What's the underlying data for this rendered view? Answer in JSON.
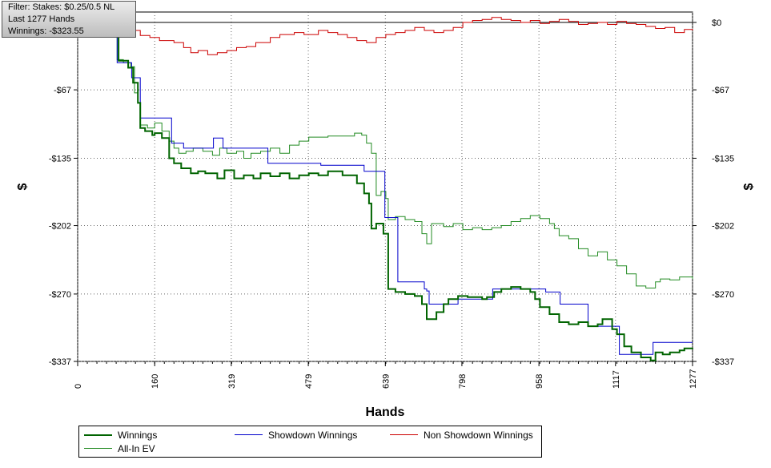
{
  "info": {
    "filter": "Filter: Stakes: $0.25/0.5 NL",
    "hands": "Last 1277 Hands",
    "winnings": "Winnings: -$323.55"
  },
  "chart_data": {
    "type": "line",
    "xlabel": "Hands",
    "ylabel": "$",
    "xlim": [
      0,
      1277
    ],
    "ylim": [
      -337,
      5
    ],
    "x_ticks": [
      0,
      160,
      319,
      479,
      639,
      798,
      958,
      1117,
      1277
    ],
    "y_ticks": [
      {
        "value": 0,
        "label": "$0"
      },
      {
        "value": -67,
        "label": "-$67"
      },
      {
        "value": -135,
        "label": "-$135"
      },
      {
        "value": -202,
        "label": "-$202"
      },
      {
        "value": -270,
        "label": "-$270"
      },
      {
        "value": -337,
        "label": "-$337"
      }
    ],
    "grid": true,
    "legend_position": "bottom",
    "series": [
      {
        "name": "Winnings",
        "color": "#006400",
        "points": [
          [
            0,
            0
          ],
          [
            78,
            0
          ],
          [
            85,
            -38
          ],
          [
            105,
            -45
          ],
          [
            115,
            -60
          ],
          [
            125,
            -80
          ],
          [
            130,
            -105
          ],
          [
            140,
            -108
          ],
          [
            155,
            -112
          ],
          [
            160,
            -110
          ],
          [
            175,
            -115
          ],
          [
            190,
            -135
          ],
          [
            200,
            -140
          ],
          [
            215,
            -145
          ],
          [
            235,
            -150
          ],
          [
            250,
            -148
          ],
          [
            265,
            -150
          ],
          [
            290,
            -155
          ],
          [
            305,
            -147
          ],
          [
            325,
            -155
          ],
          [
            345,
            -152
          ],
          [
            365,
            -155
          ],
          [
            380,
            -150
          ],
          [
            400,
            -153
          ],
          [
            420,
            -150
          ],
          [
            440,
            -155
          ],
          [
            460,
            -152
          ],
          [
            480,
            -150
          ],
          [
            500,
            -152
          ],
          [
            520,
            -148
          ],
          [
            550,
            -152
          ],
          [
            580,
            -160
          ],
          [
            595,
            -170
          ],
          [
            605,
            -180
          ],
          [
            610,
            -205
          ],
          [
            620,
            -200
          ],
          [
            635,
            -210
          ],
          [
            645,
            -265
          ],
          [
            660,
            -268
          ],
          [
            680,
            -270
          ],
          [
            700,
            -272
          ],
          [
            715,
            -280
          ],
          [
            725,
            -295
          ],
          [
            745,
            -288
          ],
          [
            760,
            -280
          ],
          [
            770,
            -275
          ],
          [
            790,
            -272
          ],
          [
            810,
            -273
          ],
          [
            840,
            -275
          ],
          [
            850,
            -273
          ],
          [
            865,
            -268
          ],
          [
            880,
            -265
          ],
          [
            900,
            -263
          ],
          [
            920,
            -265
          ],
          [
            940,
            -268
          ],
          [
            950,
            -275
          ],
          [
            960,
            -283
          ],
          [
            980,
            -290
          ],
          [
            1000,
            -298
          ],
          [
            1020,
            -300
          ],
          [
            1040,
            -298
          ],
          [
            1060,
            -302
          ],
          [
            1080,
            -300
          ],
          [
            1090,
            -295
          ],
          [
            1110,
            -305
          ],
          [
            1120,
            -310
          ],
          [
            1135,
            -322
          ],
          [
            1150,
            -328
          ],
          [
            1170,
            -333
          ],
          [
            1190,
            -336
          ],
          [
            1200,
            -328
          ],
          [
            1215,
            -330
          ],
          [
            1230,
            -328
          ],
          [
            1250,
            -326
          ],
          [
            1260,
            -324
          ],
          [
            1277,
            -323.55
          ]
        ]
      },
      {
        "name": "Showdown Winnings",
        "color": "#0000cc",
        "points": [
          [
            0,
            0
          ],
          [
            78,
            0
          ],
          [
            82,
            -40
          ],
          [
            110,
            -40
          ],
          [
            112,
            -55
          ],
          [
            128,
            -55
          ],
          [
            130,
            -95
          ],
          [
            190,
            -95
          ],
          [
            195,
            -120
          ],
          [
            215,
            -120
          ],
          [
            220,
            -125
          ],
          [
            280,
            -125
          ],
          [
            282,
            -115
          ],
          [
            300,
            -115
          ],
          [
            302,
            -125
          ],
          [
            390,
            -125
          ],
          [
            395,
            -140
          ],
          [
            500,
            -140
          ],
          [
            505,
            -142
          ],
          [
            590,
            -142
          ],
          [
            595,
            -148
          ],
          [
            635,
            -148
          ],
          [
            638,
            -194
          ],
          [
            660,
            -194
          ],
          [
            665,
            -258
          ],
          [
            715,
            -258
          ],
          [
            720,
            -265
          ],
          [
            725,
            -267
          ],
          [
            730,
            -280
          ],
          [
            780,
            -280
          ],
          [
            790,
            -275
          ],
          [
            860,
            -275
          ],
          [
            862,
            -265
          ],
          [
            970,
            -265
          ],
          [
            972,
            -268
          ],
          [
            1000,
            -268
          ],
          [
            1002,
            -280
          ],
          [
            1055,
            -280
          ],
          [
            1060,
            -302
          ],
          [
            1120,
            -302
          ],
          [
            1125,
            -330
          ],
          [
            1190,
            -330
          ],
          [
            1195,
            -318
          ],
          [
            1277,
            -318
          ]
        ]
      },
      {
        "name": "Non Showdown Winnings",
        "color": "#cc0000",
        "points": [
          [
            0,
            0
          ],
          [
            80,
            0
          ],
          [
            100,
            -5
          ],
          [
            120,
            -8
          ],
          [
            130,
            -13
          ],
          [
            150,
            -15
          ],
          [
            170,
            -18
          ],
          [
            200,
            -20
          ],
          [
            220,
            -25
          ],
          [
            235,
            -30
          ],
          [
            250,
            -28
          ],
          [
            270,
            -32
          ],
          [
            290,
            -30
          ],
          [
            310,
            -28
          ],
          [
            330,
            -25
          ],
          [
            350,
            -24
          ],
          [
            370,
            -20
          ],
          [
            400,
            -15
          ],
          [
            420,
            -12
          ],
          [
            450,
            -10
          ],
          [
            470,
            -12
          ],
          [
            500,
            -8
          ],
          [
            520,
            -10
          ],
          [
            540,
            -12
          ],
          [
            560,
            -15
          ],
          [
            580,
            -18
          ],
          [
            600,
            -20
          ],
          [
            620,
            -15
          ],
          [
            640,
            -12
          ],
          [
            660,
            -10
          ],
          [
            680,
            -8
          ],
          [
            700,
            -5
          ],
          [
            720,
            -8
          ],
          [
            740,
            -10
          ],
          [
            760,
            -8
          ],
          [
            780,
            -5
          ],
          [
            800,
            0
          ],
          [
            820,
            2
          ],
          [
            840,
            3
          ],
          [
            860,
            5
          ],
          [
            880,
            3
          ],
          [
            900,
            2
          ],
          [
            920,
            0
          ],
          [
            940,
            2
          ],
          [
            960,
            -1
          ],
          [
            980,
            1
          ],
          [
            1000,
            3
          ],
          [
            1020,
            1
          ],
          [
            1040,
            -2
          ],
          [
            1060,
            -1
          ],
          [
            1080,
            0
          ],
          [
            1100,
            -2
          ],
          [
            1120,
            1
          ],
          [
            1140,
            -1
          ],
          [
            1160,
            -2
          ],
          [
            1180,
            -4
          ],
          [
            1200,
            -6
          ],
          [
            1220,
            -5
          ],
          [
            1240,
            -10
          ],
          [
            1260,
            -7
          ],
          [
            1277,
            -8
          ]
        ]
      },
      {
        "name": "All-In EV",
        "color": "#228b22",
        "points": [
          [
            0,
            0
          ],
          [
            78,
            0
          ],
          [
            82,
            -37
          ],
          [
            95,
            -40
          ],
          [
            110,
            -44
          ],
          [
            118,
            -70
          ],
          [
            125,
            -80
          ],
          [
            130,
            -102
          ],
          [
            145,
            -105
          ],
          [
            160,
            -100
          ],
          [
            175,
            -108
          ],
          [
            190,
            -118
          ],
          [
            200,
            -125
          ],
          [
            210,
            -130
          ],
          [
            225,
            -128
          ],
          [
            240,
            -125
          ],
          [
            260,
            -128
          ],
          [
            280,
            -132
          ],
          [
            295,
            -125
          ],
          [
            310,
            -130
          ],
          [
            330,
            -128
          ],
          [
            345,
            -135
          ],
          [
            360,
            -130
          ],
          [
            380,
            -128
          ],
          [
            400,
            -125
          ],
          [
            420,
            -130
          ],
          [
            440,
            -122
          ],
          [
            460,
            -118
          ],
          [
            480,
            -114
          ],
          [
            500,
            -114
          ],
          [
            520,
            -113
          ],
          [
            545,
            -113
          ],
          [
            560,
            -113
          ],
          [
            575,
            -110
          ],
          [
            590,
            -112
          ],
          [
            600,
            -120
          ],
          [
            610,
            -130
          ],
          [
            620,
            -172
          ],
          [
            630,
            -168
          ],
          [
            640,
            -175
          ],
          [
            645,
            -196
          ],
          [
            660,
            -193
          ],
          [
            680,
            -196
          ],
          [
            700,
            -198
          ],
          [
            715,
            -210
          ],
          [
            725,
            -220
          ],
          [
            735,
            -200
          ],
          [
            760,
            -203
          ],
          [
            780,
            -200
          ],
          [
            800,
            -206
          ],
          [
            820,
            -204
          ],
          [
            840,
            -206
          ],
          [
            860,
            -204
          ],
          [
            880,
            -202
          ],
          [
            900,
            -198
          ],
          [
            920,
            -195
          ],
          [
            940,
            -192
          ],
          [
            960,
            -195
          ],
          [
            980,
            -200
          ],
          [
            990,
            -205
          ],
          [
            1000,
            -212
          ],
          [
            1020,
            -215
          ],
          [
            1040,
            -225
          ],
          [
            1060,
            -232
          ],
          [
            1080,
            -228
          ],
          [
            1100,
            -236
          ],
          [
            1120,
            -242
          ],
          [
            1140,
            -250
          ],
          [
            1160,
            -262
          ],
          [
            1180,
            -264
          ],
          [
            1200,
            -258
          ],
          [
            1210,
            -255
          ],
          [
            1230,
            -256
          ],
          [
            1250,
            -253
          ],
          [
            1277,
            -255
          ]
        ]
      }
    ]
  }
}
